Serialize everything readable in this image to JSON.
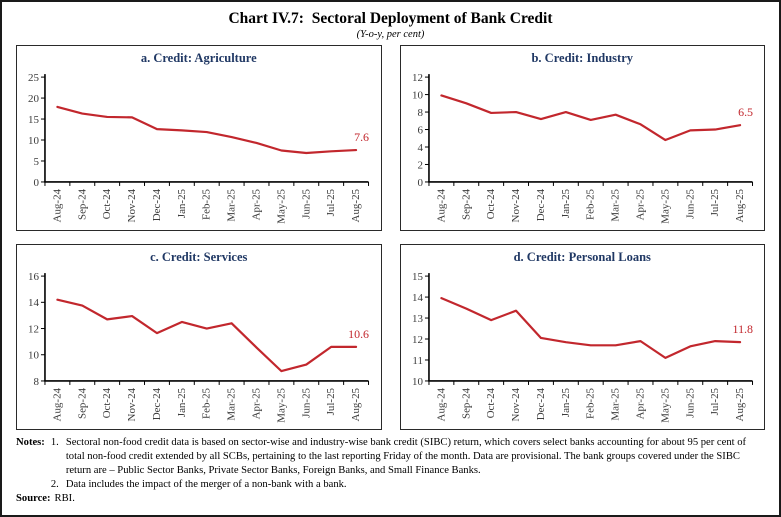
{
  "figure": {
    "title": "Chart IV.7:  Sectoral Deployment of Bank Credit",
    "subtitle": "(Y-o-y, per cent)"
  },
  "colors": {
    "line": "#c2272d",
    "end_label": "#c2272d",
    "panel_title": "#203864",
    "axis_text": "#3b3b3b",
    "axis_line": "#000000",
    "figure_border": "#1a1a1a"
  },
  "chart_data": [
    {
      "type": "line",
      "title": "a. Credit: Agriculture",
      "categories": [
        "Aug-24",
        "Sep-24",
        "Oct-24",
        "Nov-24",
        "Dec-24",
        "Jan-25",
        "Feb-25",
        "Mar-25",
        "Apr-25",
        "May-25",
        "Jun-25",
        "Jul-25",
        "Aug-25"
      ],
      "values": [
        17.9,
        16.3,
        15.5,
        15.4,
        12.6,
        12.3,
        11.9,
        10.7,
        9.3,
        7.5,
        6.9,
        7.3,
        7.6
      ],
      "ylim": [
        0,
        25
      ],
      "yticks": [
        0,
        5,
        10,
        15,
        20,
        25
      ],
      "end_label": "7.6",
      "xlabel": "",
      "ylabel": "",
      "grid": false,
      "legend": "none"
    },
    {
      "type": "line",
      "title": "b. Credit: Industry",
      "categories": [
        "Aug-24",
        "Sep-24",
        "Oct-24",
        "Nov-24",
        "Dec-24",
        "Jan-25",
        "Feb-25",
        "Mar-25",
        "Apr-25",
        "May-25",
        "Jun-25",
        "Jul-25",
        "Aug-25"
      ],
      "values": [
        9.9,
        9.0,
        7.9,
        8.0,
        7.2,
        8.0,
        7.1,
        7.7,
        6.6,
        4.8,
        5.9,
        6.0,
        6.5
      ],
      "ylim": [
        0,
        12
      ],
      "yticks": [
        0,
        2,
        4,
        6,
        8,
        10,
        12
      ],
      "end_label": "6.5",
      "xlabel": "",
      "ylabel": "",
      "grid": false,
      "legend": "none"
    },
    {
      "type": "line",
      "title": "c. Credit: Services",
      "categories": [
        "Aug-24",
        "Sep-24",
        "Oct-24",
        "Nov-24",
        "Dec-24",
        "Jan-25",
        "Feb-25",
        "Mar-25",
        "Apr-25",
        "May-25",
        "Jun-25",
        "Jul-25",
        "Aug-25"
      ],
      "values": [
        14.2,
        13.75,
        12.7,
        12.95,
        11.65,
        12.5,
        12.0,
        12.4,
        10.55,
        8.75,
        9.25,
        10.6,
        10.6
      ],
      "ylim": [
        8,
        16
      ],
      "yticks": [
        8,
        10,
        12,
        14,
        16
      ],
      "end_label": "10.6",
      "xlabel": "",
      "ylabel": "",
      "grid": false,
      "legend": "none"
    },
    {
      "type": "line",
      "title": "d. Credit: Personal Loans",
      "categories": [
        "Aug-24",
        "Sep-24",
        "Oct-24",
        "Nov-24",
        "Dec-24",
        "Jan-25",
        "Feb-25",
        "Mar-25",
        "Apr-25",
        "May-25",
        "Jun-25",
        "Jul-25",
        "Aug-25"
      ],
      "values": [
        13.95,
        13.45,
        12.9,
        13.35,
        12.05,
        11.85,
        11.7,
        11.7,
        11.9,
        11.1,
        11.65,
        11.9,
        11.85
      ],
      "ylim": [
        10,
        15
      ],
      "yticks": [
        10,
        11,
        12,
        13,
        14,
        15
      ],
      "end_label": "11.8",
      "xlabel": "",
      "ylabel": "",
      "grid": false,
      "legend": "none"
    }
  ],
  "notes": {
    "label": "Notes:",
    "items": [
      {
        "num": "1.",
        "text": "Sectoral non-food credit data is based on sector-wise and industry-wise bank credit (SIBC) return, which covers select banks accounting for about 95 per cent of total non-food credit extended by all SCBs, pertaining to the last reporting Friday of the month. Data are provisional. The bank groups covered under the SIBC return are – Public Sector Banks, Private Sector Banks, Foreign Banks, and Small Finance Banks."
      },
      {
        "num": "2.",
        "text": "Data includes the impact of the merger of a non-bank with a bank."
      }
    ],
    "source_label": "Source:",
    "source_text": "RBI."
  }
}
